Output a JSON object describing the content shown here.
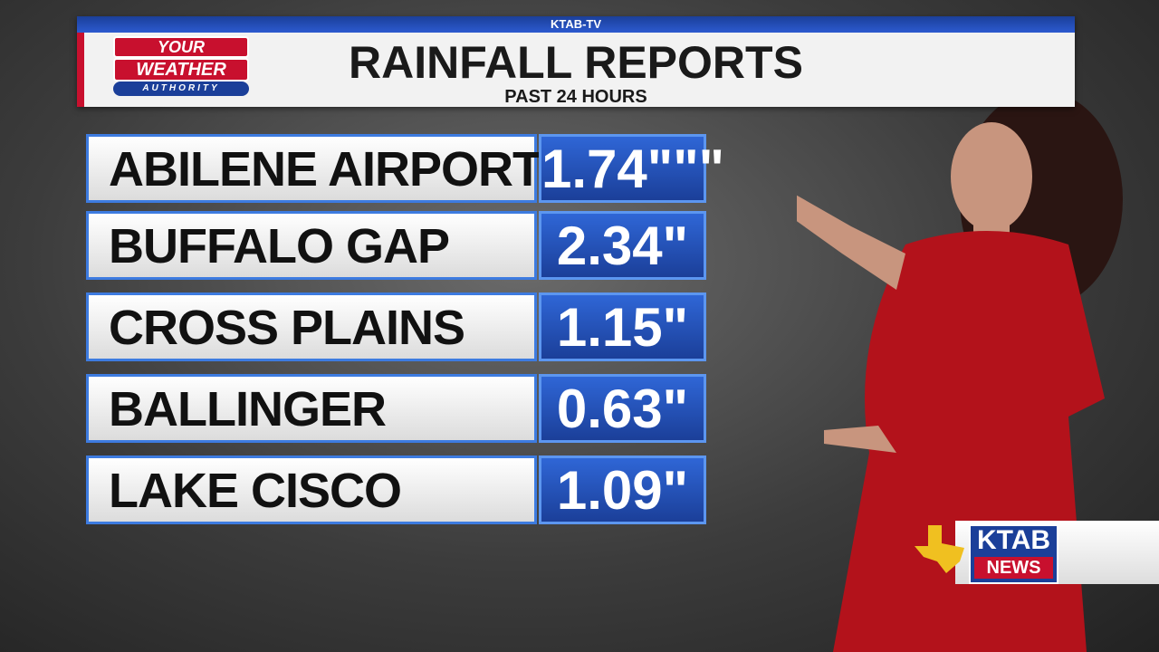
{
  "header": {
    "station": "KTAB-TV",
    "title": "RAINFALL REPORTS",
    "subtitle": "PAST 24 HOURS"
  },
  "logo": {
    "line1": "YOUR",
    "line2": "WEATHER",
    "line3": "AUTHORITY"
  },
  "table": {
    "rows": [
      [
        "ABILENE AIRPORT",
        "1.74\"\"\""
      ],
      [
        "BUFFALO GAP",
        "2.34\""
      ],
      [
        "CROSS PLAINS",
        "1.15\""
      ],
      [
        "BALLINGER",
        "0.63\""
      ],
      [
        "LAKE CISCO",
        "1.09\""
      ]
    ]
  },
  "bug": {
    "call": "KTAB",
    "brand": "NEWS"
  }
}
